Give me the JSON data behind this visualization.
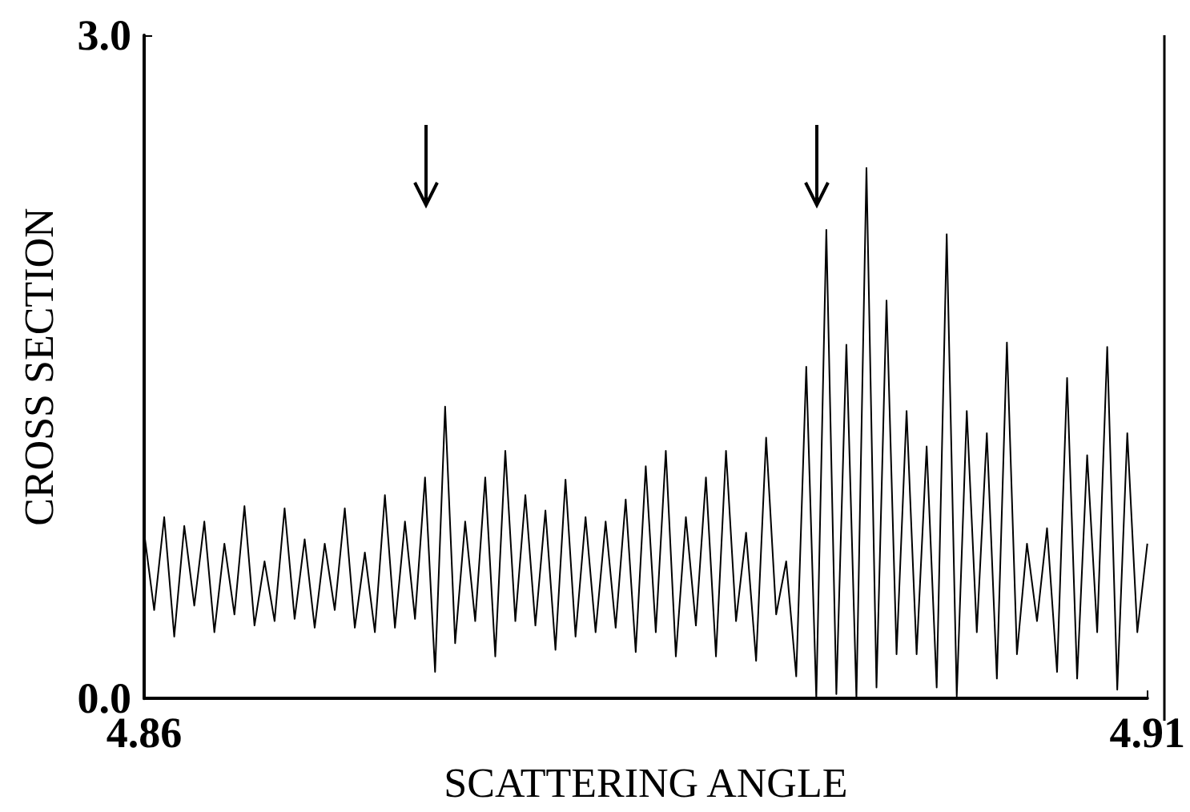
{
  "chart_data": {
    "type": "line",
    "xlabel": "SCATTERING ANGLE",
    "ylabel": "CROSS SECTION",
    "xlim": [
      4.86,
      4.91
    ],
    "xticks": [
      {
        "value": 4.86,
        "label": "4.86"
      },
      {
        "value": 4.91,
        "label": "4.91"
      }
    ],
    "ylim": [
      0,
      3
    ],
    "yticks": [
      {
        "value": 0,
        "label": "0.0"
      },
      {
        "value": 3,
        "label": "3.0"
      }
    ],
    "grid": false,
    "marker": "none",
    "line_style": "solid",
    "x": [
      4.86,
      4.8605,
      4.861,
      4.8615,
      4.862,
      4.8625,
      4.863,
      4.8635,
      4.864,
      4.8645,
      4.865,
      4.8655,
      4.866,
      4.8665,
      4.867,
      4.8675,
      4.868,
      4.8685,
      4.869,
      4.8695,
      4.87,
      4.8705,
      4.871,
      4.8715,
      4.872,
      4.8725,
      4.873,
      4.8735,
      4.874,
      4.8745,
      4.875,
      4.8755,
      4.876,
      4.8765,
      4.877,
      4.8775,
      4.878,
      4.8785,
      4.879,
      4.8795,
      4.88,
      4.8805,
      4.881,
      4.8815,
      4.882,
      4.8825,
      4.883,
      4.8835,
      4.884,
      4.8845,
      4.885,
      4.8855,
      4.886,
      4.8865,
      4.887,
      4.8875,
      4.888,
      4.8885,
      4.889,
      4.8895,
      4.89,
      4.8905,
      4.891,
      4.8915,
      4.892,
      4.8925,
      4.893,
      4.8935,
      4.894,
      4.8945,
      4.895,
      4.8955,
      4.896,
      4.8965,
      4.897,
      4.8975,
      4.898,
      4.8985,
      4.899,
      4.8995,
      4.9,
      4.9005,
      4.901,
      4.9015,
      4.902,
      4.9025,
      4.903,
      4.9035,
      4.904,
      4.9045,
      4.905,
      4.9055,
      4.906,
      4.9065,
      4.907,
      4.9075,
      4.908,
      4.9085,
      4.909,
      4.9095,
      4.91
    ],
    "series": [
      {
        "color": "#000000",
        "values": [
          0.75,
          0.4,
          0.82,
          0.28,
          0.78,
          0.42,
          0.8,
          0.3,
          0.7,
          0.38,
          0.87,
          0.33,
          0.62,
          0.35,
          0.86,
          0.36,
          0.72,
          0.32,
          0.7,
          0.4,
          0.86,
          0.32,
          0.66,
          0.3,
          0.92,
          0.32,
          0.8,
          0.36,
          1.0,
          0.12,
          1.32,
          0.25,
          0.8,
          0.35,
          1.0,
          0.19,
          1.12,
          0.35,
          0.92,
          0.33,
          0.85,
          0.22,
          0.99,
          0.28,
          0.82,
          0.3,
          0.8,
          0.32,
          0.9,
          0.21,
          1.05,
          0.3,
          1.12,
          0.19,
          0.82,
          0.33,
          1.0,
          0.19,
          1.12,
          0.35,
          0.75,
          0.17,
          1.18,
          0.38,
          0.62,
          0.1,
          1.5,
          0.0,
          2.12,
          0.02,
          1.6,
          0.0,
          2.4,
          0.05,
          1.8,
          0.2,
          1.3,
          0.2,
          1.14,
          0.05,
          2.1,
          0.01,
          1.3,
          0.3,
          1.2,
          0.09,
          1.61,
          0.2,
          0.7,
          0.35,
          0.77,
          0.12,
          1.45,
          0.09,
          1.1,
          0.3,
          1.59,
          0.04,
          1.2,
          0.3,
          0.7
        ]
      }
    ]
  }
}
